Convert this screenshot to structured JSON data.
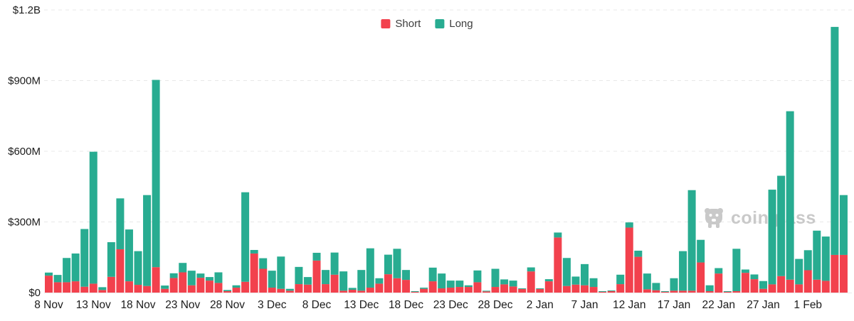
{
  "page": {
    "background": "#ffffff"
  },
  "legend": {
    "items": [
      {
        "label": "Short",
        "color": "#F2414D"
      },
      {
        "label": "Long",
        "color": "#28AC91"
      }
    ]
  },
  "watermark": {
    "text": "coinglass",
    "icon": "bear-mascot-icon",
    "color": "#c9c9c9"
  },
  "y_axis": {
    "tick_labels": [
      "$0",
      "$300M",
      "$600M",
      "$900M",
      "$1.2B"
    ],
    "tick_values_millions": [
      0,
      300,
      600,
      900,
      1200
    ]
  },
  "chart_data": {
    "type": "bar",
    "stacked": true,
    "title": "",
    "xlabel": "",
    "ylabel": "",
    "unit": "millions USD",
    "ylim_millions": [
      0,
      1200
    ],
    "grid": "dashed horizontal",
    "legend_position": "top-center",
    "x_tick_every": 5,
    "categories": [
      "8 Nov",
      "9 Nov",
      "10 Nov",
      "11 Nov",
      "12 Nov",
      "13 Nov",
      "14 Nov",
      "15 Nov",
      "16 Nov",
      "17 Nov",
      "18 Nov",
      "19 Nov",
      "20 Nov",
      "21 Nov",
      "22 Nov",
      "23 Nov",
      "24 Nov",
      "25 Nov",
      "26 Nov",
      "27 Nov",
      "28 Nov",
      "29 Nov",
      "30 Nov",
      "1 Dec",
      "2 Dec",
      "3 Dec",
      "4 Dec",
      "5 Dec",
      "6 Dec",
      "7 Dec",
      "8 Dec",
      "9 Dec",
      "10 Dec",
      "11 Dec",
      "12 Dec",
      "13 Dec",
      "14 Dec",
      "15 Dec",
      "16 Dec",
      "17 Dec",
      "18 Dec",
      "19 Dec",
      "20 Dec",
      "21 Dec",
      "22 Dec",
      "23 Dec",
      "24 Dec",
      "25 Dec",
      "26 Dec",
      "27 Dec",
      "28 Dec",
      "29 Dec",
      "30 Dec",
      "31 Dec",
      "1 Jan",
      "2 Jan",
      "3 Jan",
      "4 Jan",
      "5 Jan",
      "6 Jan",
      "7 Jan",
      "8 Jan",
      "9 Jan",
      "10 Jan",
      "11 Jan",
      "12 Jan",
      "13 Jan",
      "14 Jan",
      "15 Jan",
      "16 Jan",
      "17 Jan",
      "18 Jan",
      "19 Jan",
      "20 Jan",
      "21 Jan",
      "22 Jan",
      "23 Jan",
      "24 Jan",
      "25 Jan",
      "26 Jan",
      "27 Jan",
      "28 Jan",
      "29 Jan",
      "30 Jan",
      "31 Jan",
      "1 Feb",
      "2 Feb",
      "3 Feb",
      "4 Feb",
      "5 Feb"
    ],
    "series": [
      {
        "name": "Short",
        "color": "#F2414D",
        "values_millions": [
          72,
          44,
          44,
          48,
          25,
          38,
          11,
          67,
          184,
          48,
          33,
          28,
          108,
          16,
          62,
          86,
          31,
          63,
          51,
          41,
          6,
          21,
          46,
          166,
          101,
          21,
          16,
          8,
          36,
          34,
          136,
          36,
          76,
          8,
          12,
          8,
          21,
          38,
          78,
          61,
          54,
          2,
          16,
          48,
          18,
          21,
          24,
          24,
          44,
          5,
          24,
          35,
          26,
          15,
          90,
          15,
          48,
          234,
          28,
          34,
          31,
          24,
          2,
          6,
          36,
          276,
          152,
          14,
          10,
          2,
          8,
          8,
          8,
          128,
          6,
          81,
          2,
          6,
          84,
          57,
          16,
          35,
          70,
          55,
          35,
          95,
          55,
          50,
          160,
          160
        ]
      },
      {
        "name": "Long",
        "color": "#28AC91",
        "values_millions": [
          13,
          31,
          103,
          118,
          245,
          560,
          12,
          147,
          216,
          220,
          143,
          386,
          795,
          14,
          20,
          40,
          62,
          18,
          15,
          45,
          5,
          10,
          380,
          15,
          45,
          72,
          137,
          8,
          73,
          32,
          33,
          60,
          94,
          82,
          8,
          88,
          167,
          23,
          83,
          125,
          42,
          2,
          5,
          58,
          63,
          30,
          27,
          7,
          50,
          3,
          77,
          21,
          25,
          3,
          17,
          3,
          9,
          21,
          119,
          34,
          90,
          37,
          1,
          2,
          40,
          22,
          26,
          67,
          31,
          1,
          53,
          168,
          427,
          96,
          25,
          23,
          1,
          180,
          14,
          20,
          33,
          402,
          426,
          715,
          108,
          85,
          208,
          188,
          968,
          254
        ]
      }
    ]
  }
}
